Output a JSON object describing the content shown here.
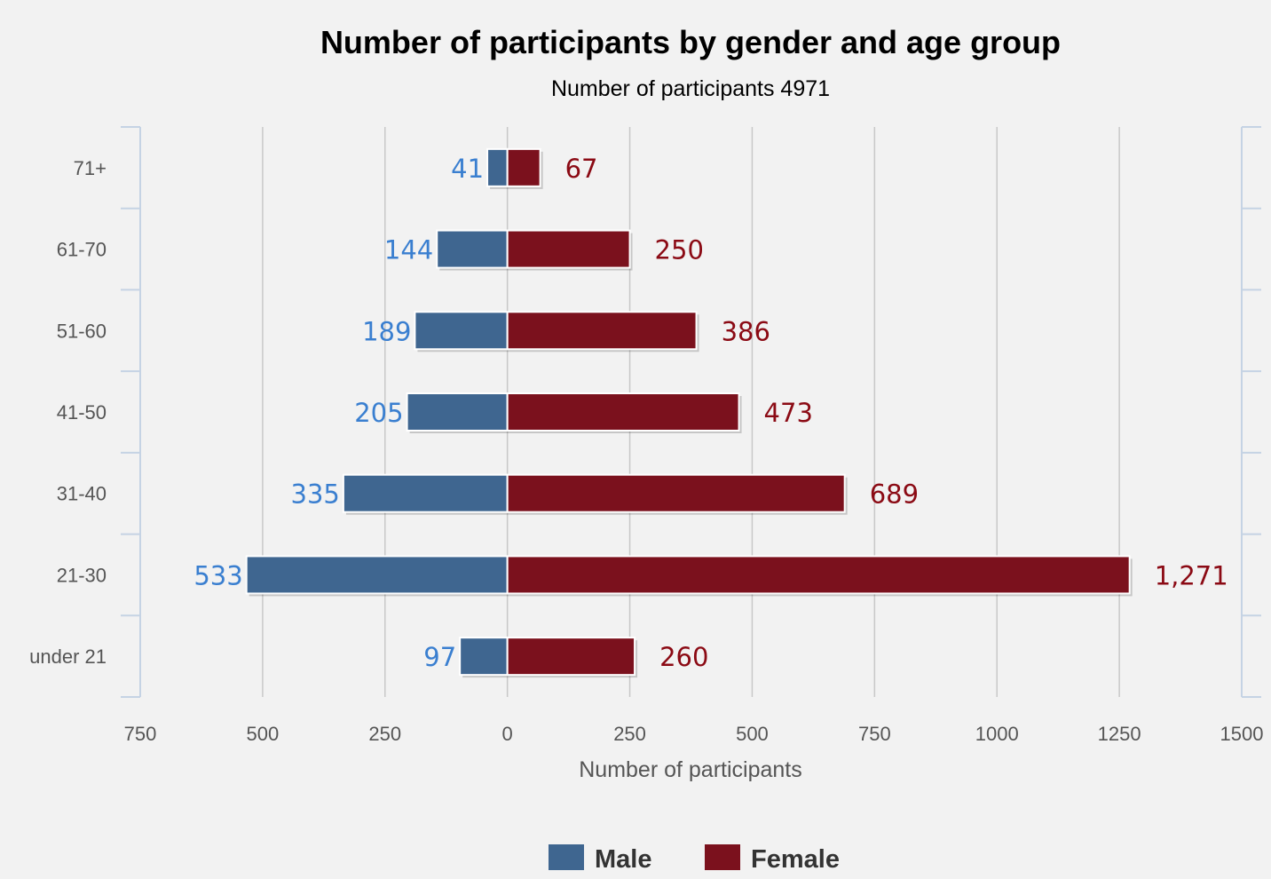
{
  "chart_data": {
    "type": "bar",
    "orientation": "horizontal-diverging",
    "title": "Number of participants by gender and age group",
    "subtitle": "Number of participants 4971",
    "xlabel": "Number of participants",
    "categories": [
      "71+",
      "61-70",
      "51-60",
      "41-50",
      "31-40",
      "21-30",
      "under 21"
    ],
    "series": [
      {
        "name": "Male",
        "color": "#3f6690",
        "label_color": "#3a7fd0",
        "direction": "left",
        "values": [
          41,
          144,
          189,
          205,
          335,
          533,
          97
        ],
        "labels": [
          "41",
          "144",
          "189",
          "205",
          "335",
          "533",
          "97"
        ]
      },
      {
        "name": "Female",
        "color": "#7b111d",
        "label_color": "#8b0a14",
        "direction": "right",
        "values": [
          67,
          250,
          386,
          473,
          689,
          1271,
          260
        ],
        "labels": [
          "67",
          "250",
          "386",
          "473",
          "689",
          "1,271",
          "260"
        ]
      }
    ],
    "ticks": [
      "750",
      "500",
      "250",
      "0",
      "250",
      "500",
      "750",
      "1000",
      "1250",
      "1500"
    ],
    "xlim": [
      -750,
      1500
    ],
    "grid": true,
    "legend_position": "bottom-center"
  }
}
